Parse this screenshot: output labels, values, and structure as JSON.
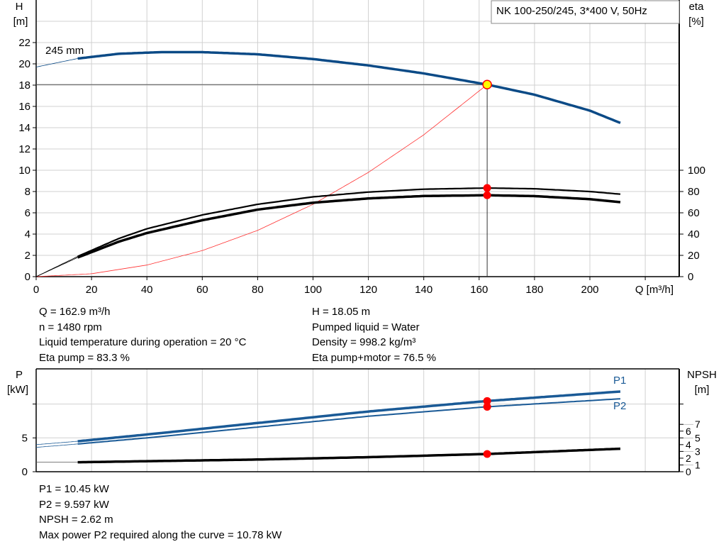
{
  "title": "NK 100-250/245, 3*400 V, 50Hz",
  "colors": {
    "head": "#0b4a86",
    "power": "#1a5a96",
    "system": "#ff3030",
    "duty": "#ffff00",
    "marker": "#ff0000",
    "grid": "#d0d0d0"
  },
  "chart_data": [
    {
      "type": "line",
      "xlabel": "Q [m³/h]",
      "xlim": [
        0,
        230
      ],
      "xticks": [
        0,
        20,
        40,
        60,
        80,
        100,
        120,
        140,
        160,
        180,
        200
      ],
      "y_left": {
        "label_top": "H",
        "label_unit": "[m]",
        "ylim": [
          0,
          26
        ],
        "ticks": [
          0,
          2,
          4,
          6,
          8,
          10,
          12,
          14,
          16,
          18,
          20,
          22
        ]
      },
      "y_right": {
        "label_top": "eta",
        "label_unit": "[%]",
        "ylim": [
          0,
          260
        ],
        "ticks": [
          0,
          20,
          40,
          60,
          80,
          100
        ]
      },
      "grid": true,
      "series": [
        {
          "name": "245 mm",
          "axis": "left",
          "values": [
            [
              0,
              19.7
            ],
            [
              15,
              20.5
            ],
            [
              30,
              20.95
            ],
            [
              45,
              21.1
            ],
            [
              60,
              21.1
            ],
            [
              80,
              20.9
            ],
            [
              100,
              20.45
            ],
            [
              120,
              19.85
            ],
            [
              140,
              19.1
            ],
            [
              162.9,
              18.05
            ],
            [
              180,
              17.1
            ],
            [
              200,
              15.6
            ],
            [
              211,
              14.45
            ]
          ]
        },
        {
          "axis": "right",
          "values": [
            [
              0,
              0
            ],
            [
              15,
              19
            ],
            [
              30,
              36
            ],
            [
              40,
              45
            ],
            [
              60,
              58
            ],
            [
              80,
              68
            ],
            [
              100,
              75
            ],
            [
              120,
              79.5
            ],
            [
              140,
              82.2
            ],
            [
              162.9,
              83.3
            ],
            [
              180,
              82.6
            ],
            [
              200,
              80
            ],
            [
              211,
              77.5
            ]
          ]
        },
        {
          "axis": "right",
          "values": [
            [
              0,
              0
            ],
            [
              15,
              18
            ],
            [
              30,
              33
            ],
            [
              40,
              41
            ],
            [
              60,
              53
            ],
            [
              80,
              63
            ],
            [
              100,
              69.5
            ],
            [
              120,
              73.5
            ],
            [
              140,
              75.8
            ],
            [
              162.9,
              76.5
            ],
            [
              180,
              75.7
            ],
            [
              200,
              72.8
            ],
            [
              211,
              70
            ]
          ]
        },
        {
          "axis": "left",
          "values": [
            [
              0,
              0
            ],
            [
              20,
              0.27
            ],
            [
              40,
              1.09
            ],
            [
              60,
              2.45
            ],
            [
              80,
              4.35
            ],
            [
              100,
              6.8
            ],
            [
              120,
              9.8
            ],
            [
              140,
              13.33
            ],
            [
              162.9,
              18.05
            ]
          ]
        }
      ],
      "duty_point": {
        "q": 162.9,
        "h": 18.05,
        "eta_pump": 83.3,
        "eta_total": 76.5
      }
    },
    {
      "type": "line",
      "xlim": [
        0,
        230
      ],
      "y_left": {
        "label_top": "P",
        "label_unit": "[kW]",
        "ylim": [
          0,
          15.2
        ],
        "ticks": [
          0,
          5,
          10
        ],
        "tick_labels": [
          "0",
          "5",
          ""
        ]
      },
      "y_right": {
        "label_top": "NPSH",
        "label_unit": "[m]",
        "ylim": [
          0,
          15.2
        ],
        "ticks": [
          0,
          1,
          2,
          3,
          4,
          5,
          6,
          7,
          10
        ],
        "tick_labels": [
          "0",
          "1",
          "2",
          "3",
          "4",
          "5",
          "6",
          "7",
          ""
        ]
      },
      "grid": true,
      "series": [
        {
          "name": "P1",
          "axis": "left",
          "values": [
            [
              0,
              4.0
            ],
            [
              15,
              4.5
            ],
            [
              40,
              5.5
            ],
            [
              80,
              7.2
            ],
            [
              120,
              8.9
            ],
            [
              162.9,
              10.45
            ],
            [
              211,
              11.85
            ]
          ]
        },
        {
          "name": "P2",
          "axis": "left",
          "values": [
            [
              0,
              3.6
            ],
            [
              15,
              4.1
            ],
            [
              40,
              5.0
            ],
            [
              80,
              6.6
            ],
            [
              120,
              8.2
            ],
            [
              162.9,
              9.597
            ],
            [
              211,
              10.78
            ]
          ]
        },
        {
          "axis": "right",
          "values": [
            [
              0,
              1.4
            ],
            [
              15,
              1.4
            ],
            [
              80,
              1.8
            ],
            [
              120,
              2.15
            ],
            [
              162.9,
              2.62
            ],
            [
              211,
              3.4
            ]
          ]
        }
      ]
    }
  ],
  "info": {
    "left": [
      "Q = 162.9 m³/h",
      "n = 1480 rpm",
      "Liquid temperature during operation = 20 °C",
      "Eta pump = 83.3 %"
    ],
    "right": [
      "H = 18.05 m",
      "Pumped liquid = Water",
      "Density = 998.2 kg/m³",
      "Eta pump+motor = 76.5 %"
    ],
    "bottom": [
      "P1 = 10.45 kW",
      "P2 = 9.597 kW",
      "NPSH = 2.62 m",
      "Max power P2 required along the curve = 10.78 kW"
    ]
  }
}
